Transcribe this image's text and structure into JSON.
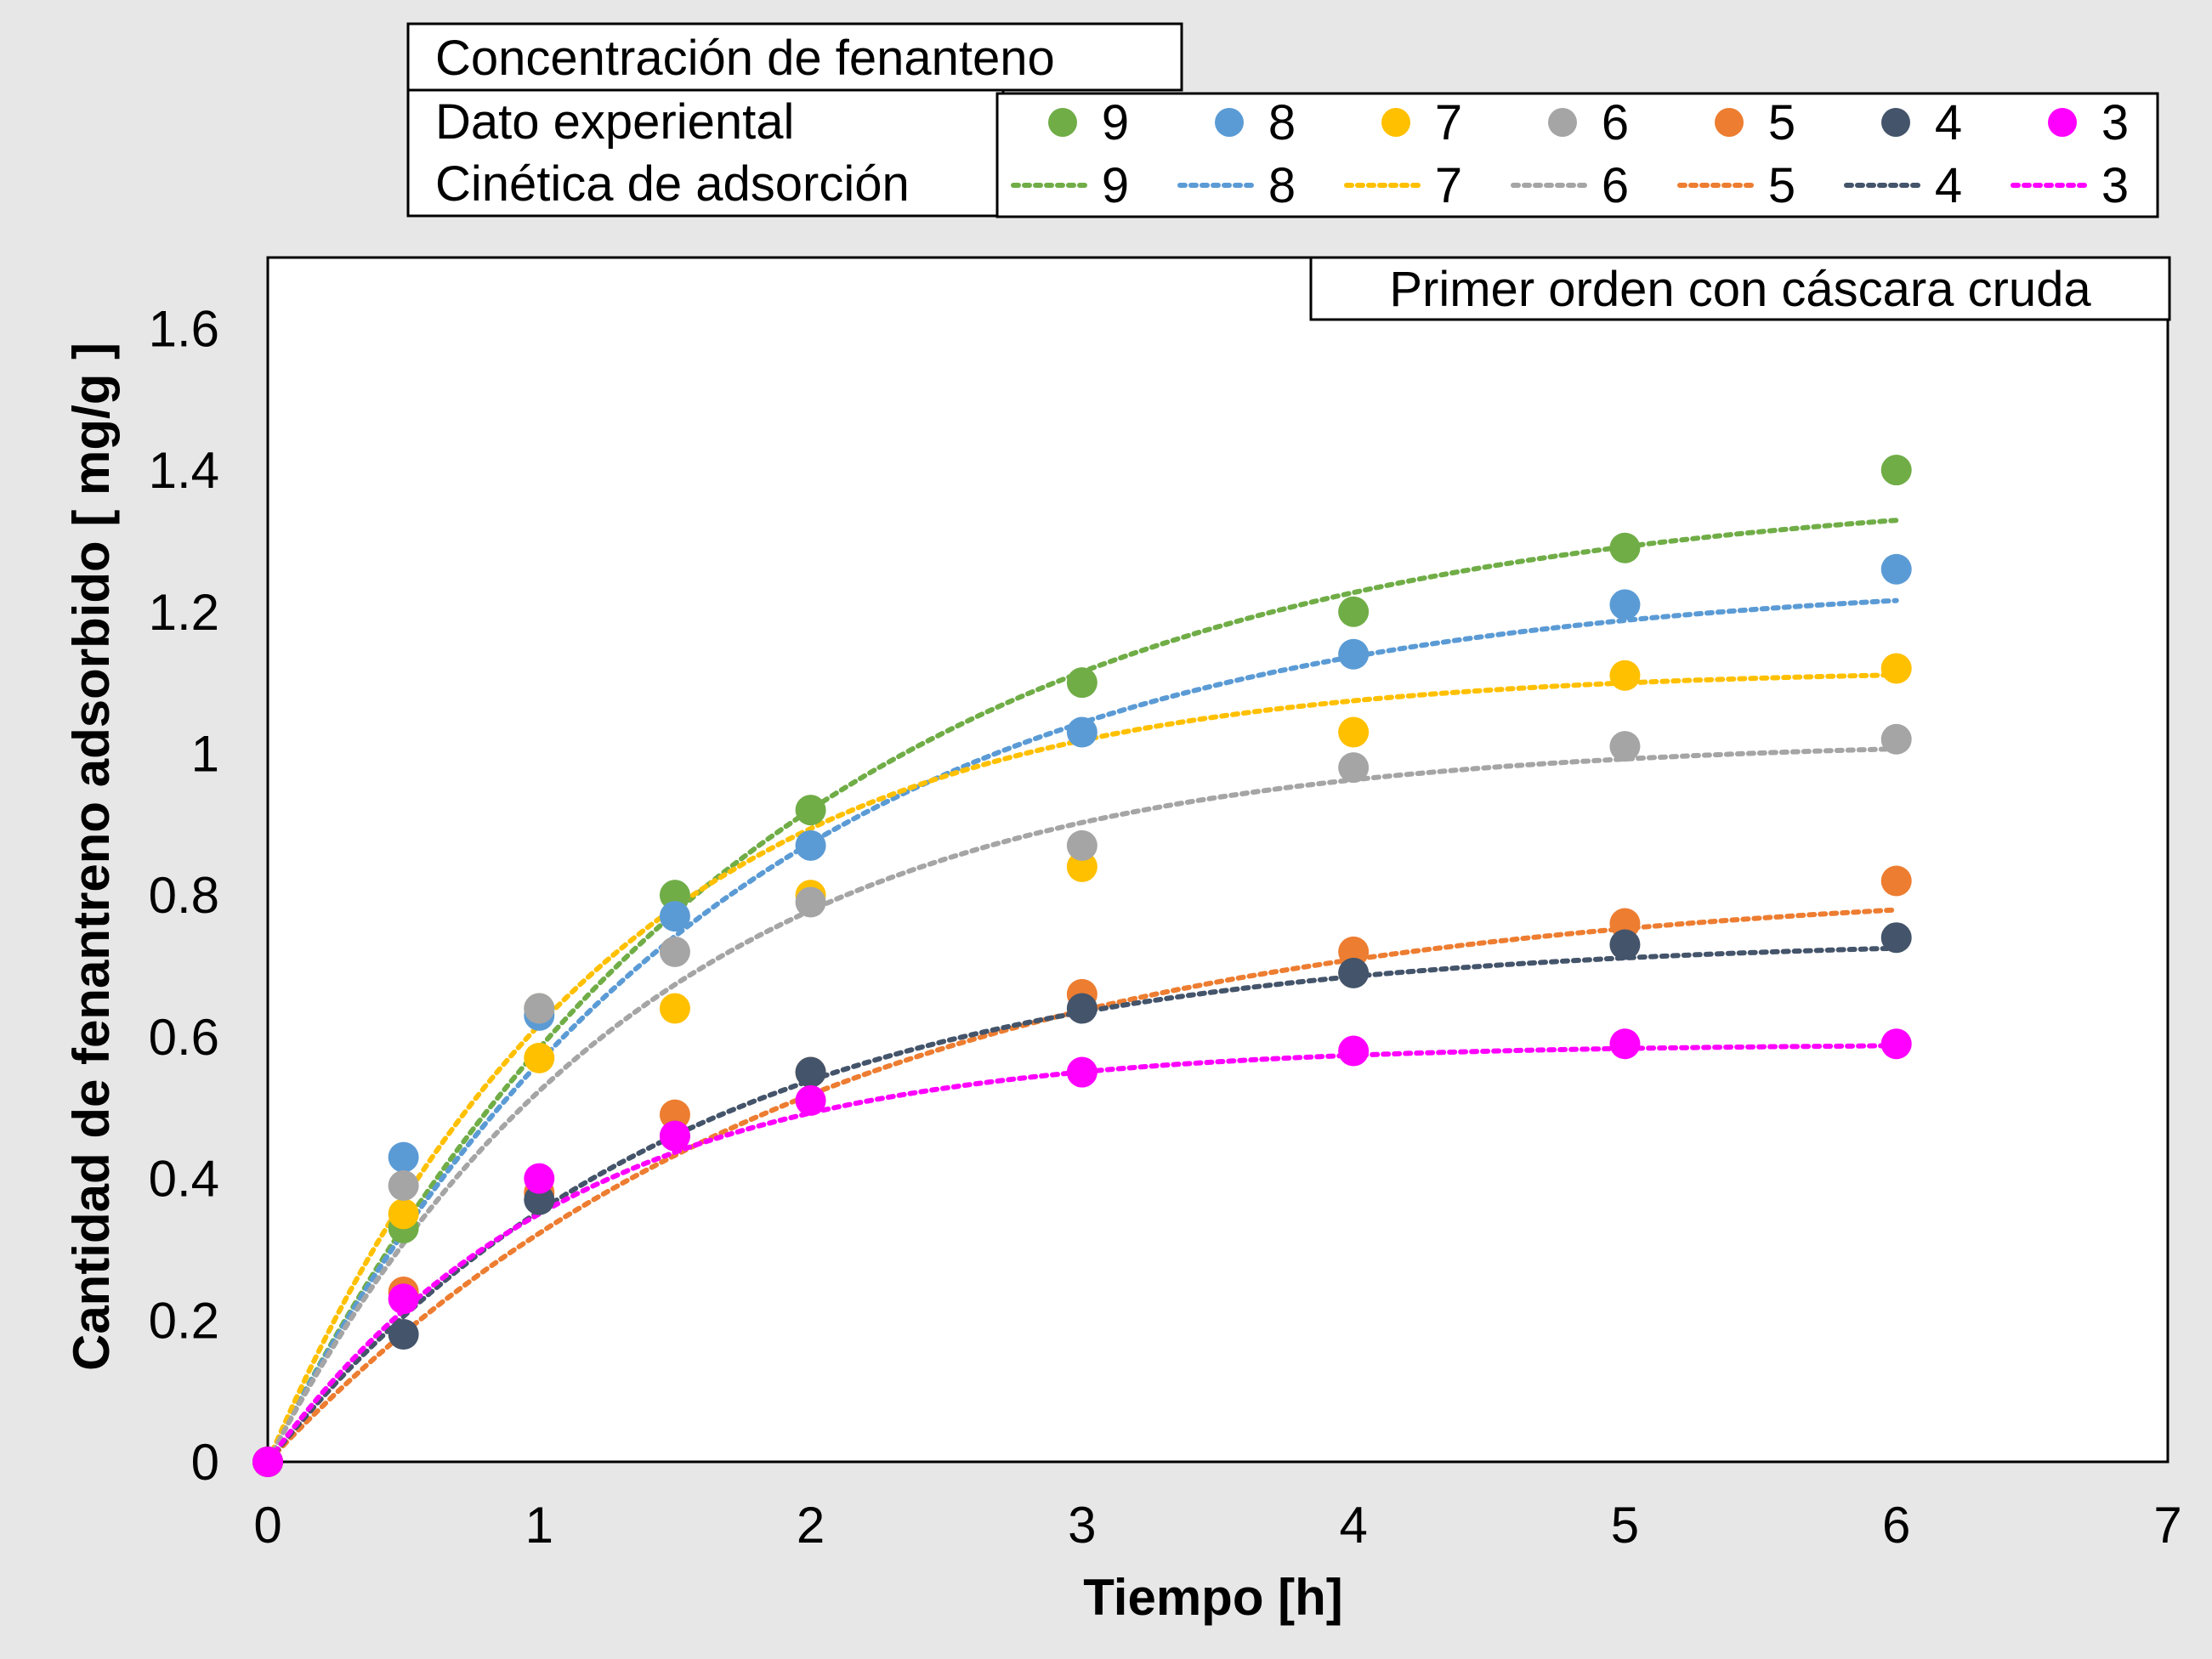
{
  "chart_data": {
    "type": "scatter",
    "annotation": "Primer orden con cáscara cruda",
    "xlabel": "Tiempo [h]",
    "ylabel": "Cantidad de fenantreno adsorbido  [ mg/g ]",
    "xlim": [
      0,
      7
    ],
    "ylim": [
      0,
      1.7
    ],
    "xticks": [
      "0",
      "1",
      "2",
      "3",
      "4",
      "5",
      "6",
      "7"
    ],
    "yticks": [
      "0",
      "0.2",
      "0.4",
      "0.6",
      "0.8",
      "1",
      "1.2",
      "1.4",
      "1.6"
    ],
    "grid": false,
    "legend": {
      "title": "Concentración de fenanteno",
      "row_markers": "Dato experiental",
      "row_lines": "Cinética de adsorción",
      "placement": "top"
    },
    "x": [
      0,
      0.5,
      1,
      1.5,
      2,
      3,
      4,
      5,
      6
    ],
    "series": [
      {
        "name": "9",
        "color": "#70ad47",
        "values": [
          0,
          0.33,
          0.64,
          0.8,
          0.92,
          1.1,
          1.2,
          1.29,
          1.4
        ],
        "fit": {
          "qe": 1.38,
          "k": 0.55
        }
      },
      {
        "name": "8",
        "color": "#5b9bd5",
        "values": [
          0,
          0.43,
          0.63,
          0.77,
          0.87,
          1.03,
          1.14,
          1.21,
          1.26
        ],
        "fit": {
          "qe": 1.25,
          "k": 0.6
        }
      },
      {
        "name": "7",
        "color": "#ffc000",
        "values": [
          0,
          0.35,
          0.57,
          0.64,
          0.8,
          0.84,
          1.03,
          1.11,
          1.12
        ],
        "fit": {
          "qe": 1.12,
          "k": 0.8
        }
      },
      {
        "name": "6",
        "color": "#a5a5a5",
        "values": [
          0,
          0.39,
          0.64,
          0.72,
          0.79,
          0.87,
          0.98,
          1.01,
          1.02
        ],
        "fit": {
          "qe": 1.02,
          "k": 0.72
        }
      },
      {
        "name": "5",
        "color": "#ed7d31",
        "values": [
          0,
          0.24,
          0.38,
          0.49,
          0.55,
          0.66,
          0.72,
          0.76,
          0.82
        ],
        "fit": {
          "qe": 0.82,
          "k": 0.5
        }
      },
      {
        "name": "4",
        "color": "#44546a",
        "values": [
          0,
          0.18,
          0.37,
          0.46,
          0.55,
          0.64,
          0.69,
          0.73,
          0.74
        ],
        "fit": {
          "qe": 0.74,
          "k": 0.65
        }
      },
      {
        "name": "3",
        "color": "#ff00ff",
        "values": [
          0,
          0.23,
          0.4,
          0.46,
          0.51,
          0.55,
          0.58,
          0.59,
          0.59
        ],
        "fit": {
          "qe": 0.59,
          "k": 0.9
        }
      }
    ]
  }
}
